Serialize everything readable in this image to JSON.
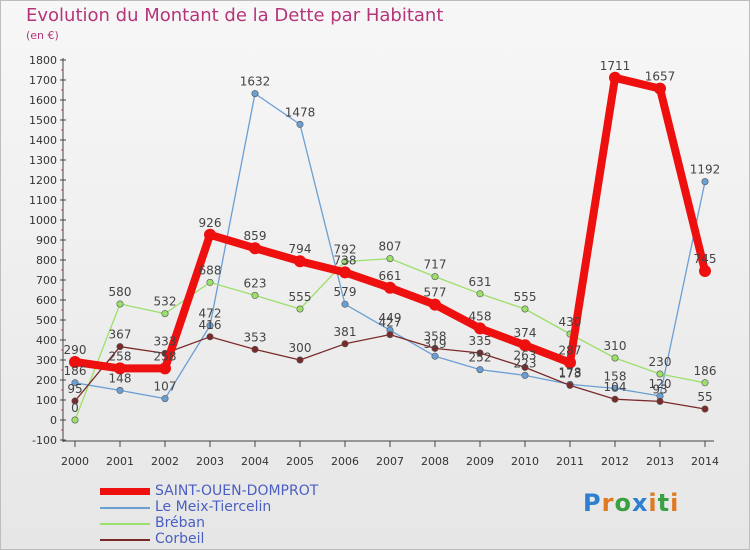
{
  "chart_data": {
    "type": "line",
    "title": "Evolution du Montant de la Dette par Habitant",
    "subtitle": "(en €)",
    "x": [
      "2000",
      "2001",
      "2002",
      "2003",
      "2004",
      "2005",
      "2006",
      "2007",
      "2008",
      "2009",
      "2010",
      "2011",
      "2012",
      "2013",
      "2014"
    ],
    "ylim": [
      -100,
      1800
    ],
    "yticks": [
      -100,
      0,
      100,
      200,
      300,
      400,
      500,
      600,
      700,
      800,
      900,
      1000,
      1100,
      1200,
      1300,
      1400,
      1500,
      1600,
      1700,
      1800
    ],
    "grid": false,
    "legend_position": "bottom-left",
    "series": [
      {
        "name": "Le Meix-Tiercelin",
        "color": "#6a9fd4",
        "values": [
          186,
          148,
          107,
          472,
          1632,
          1478,
          579,
          449,
          319,
          252,
          223,
          178,
          158,
          120,
          1192
        ]
      },
      {
        "name": "Bréban",
        "color": "#9be06a",
        "values": [
          0,
          580,
          532,
          688,
          623,
          555,
          792,
          807,
          717,
          631,
          555,
          430,
          310,
          230,
          186
        ]
      },
      {
        "name": "Corbeil",
        "color": "#7a2a2a",
        "values": [
          95,
          367,
          333,
          416,
          353,
          300,
          381,
          427,
          358,
          335,
          263,
          173,
          104,
          93,
          55
        ]
      },
      {
        "name": "SAINT-OUEN-DOMPROT",
        "color": "#ee0f0f",
        "values": [
          290,
          258,
          258,
          926,
          859,
          794,
          738,
          661,
          577,
          458,
          374,
          287,
          1711,
          1657,
          745
        ]
      }
    ]
  },
  "legend_order": [
    3,
    0,
    1,
    2
  ],
  "logo": {
    "letters": [
      "P",
      "r",
      "o",
      "x",
      "i",
      "t",
      "i"
    ],
    "colors": [
      "#2f7fd0",
      "#e07a22",
      "#3aa041",
      "#2f7fd0",
      "#e07a22",
      "#3aa041",
      "#e07a22"
    ]
  }
}
